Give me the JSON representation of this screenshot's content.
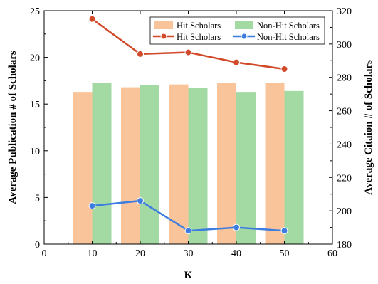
{
  "chart_data": {
    "type": "bar",
    "title": "",
    "xlabel": "K",
    "ylabel": "Average Publication # of Scholars",
    "ylabel_right": "Average Citaion # of Scholars",
    "x": [
      10,
      20,
      30,
      40,
      50
    ],
    "xlim": [
      0,
      60
    ],
    "xticks": [
      0,
      10,
      20,
      30,
      40,
      50,
      60
    ],
    "ylim": [
      0,
      25
    ],
    "yticks": [
      0,
      5,
      10,
      15,
      20,
      25
    ],
    "ylim_right": [
      180,
      320
    ],
    "yticks_right": [
      180,
      200,
      220,
      240,
      260,
      280,
      300,
      320
    ],
    "grid": false,
    "legend_position": "top-right",
    "bar_series": [
      {
        "name": "Hit Scholars",
        "axis": "left",
        "color": "#f9c49a",
        "values": [
          16.3,
          16.8,
          17.1,
          17.3,
          17.3
        ]
      },
      {
        "name": "Non-Hit Scholars",
        "axis": "left",
        "color": "#a3d9a2",
        "values": [
          17.3,
          17.0,
          16.7,
          16.3,
          16.4
        ]
      }
    ],
    "line_series": [
      {
        "name": "Hit Scholars",
        "axis": "right",
        "color": "#d14a2a",
        "values": [
          315,
          294,
          295,
          289,
          285
        ]
      },
      {
        "name": "Non-Hit Scholars",
        "axis": "right",
        "color": "#3d7de0",
        "values": [
          203,
          206,
          188,
          190,
          188
        ]
      }
    ]
  }
}
